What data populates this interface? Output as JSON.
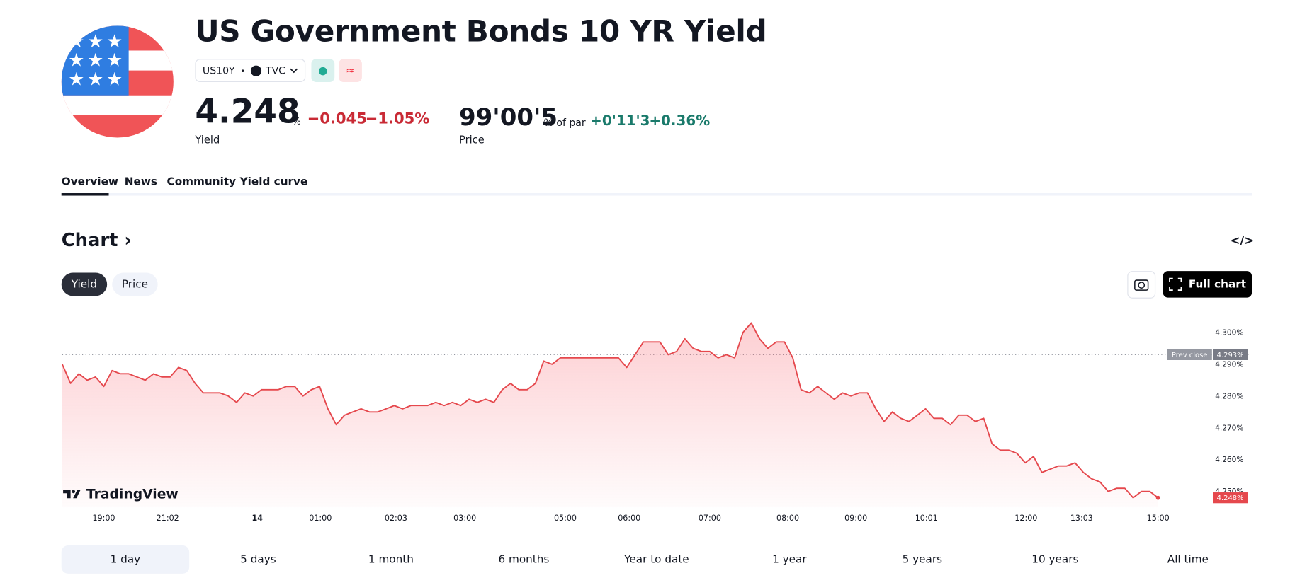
{
  "header": {
    "title": "US Government Bonds 10 YR Yield",
    "symbol": "US10Y",
    "exchange": "TVC",
    "yield_value": "4.248",
    "yield_unit": "%",
    "yield_change": "−0.045",
    "yield_change_pct": "−1.05%",
    "yield_label": "Yield",
    "price_value": "99'00'5",
    "price_unit": "% of par",
    "price_change": "+0'11'3",
    "price_change_pct": "+0.36%",
    "price_label": "Price"
  },
  "tabs": [
    "Overview",
    "News",
    "Community",
    "Yield curve"
  ],
  "chart_section": {
    "title": "Chart",
    "toggles": [
      "Yield",
      "Price"
    ],
    "full_chart": "Full chart",
    "logo": "TradingView"
  },
  "chart_data": {
    "type": "line",
    "color": "#e5484d",
    "values": [
      4.29,
      4.284,
      4.287,
      4.285,
      4.286,
      4.283,
      4.288,
      4.287,
      4.287,
      4.286,
      4.285,
      4.287,
      4.286,
      4.286,
      4.289,
      4.288,
      4.284,
      4.281,
      4.281,
      4.281,
      4.28,
      4.278,
      4.281,
      4.28,
      4.282,
      4.282,
      4.282,
      4.283,
      4.283,
      4.28,
      4.282,
      4.283,
      4.276,
      4.271,
      4.274,
      4.275,
      4.276,
      4.275,
      4.275,
      4.276,
      4.277,
      4.276,
      4.277,
      4.277,
      4.277,
      4.278,
      4.277,
      4.278,
      4.277,
      4.279,
      4.278,
      4.279,
      4.278,
      4.282,
      4.284,
      4.282,
      4.282,
      4.284,
      4.291,
      4.29,
      4.292,
      4.292,
      4.292,
      4.292,
      4.292,
      4.292,
      4.292,
      4.292,
      4.289,
      4.293,
      4.297,
      4.297,
      4.297,
      4.293,
      4.294,
      4.298,
      4.295,
      4.294,
      4.294,
      4.292,
      4.293,
      4.292,
      4.3,
      4.303,
      4.298,
      4.295,
      4.297,
      4.297,
      4.292,
      4.282,
      4.281,
      4.283,
      4.281,
      4.279,
      4.281,
      4.28,
      4.281,
      4.281,
      4.276,
      4.272,
      4.275,
      4.273,
      4.272,
      4.274,
      4.276,
      4.273,
      4.273,
      4.271,
      4.274,
      4.274,
      4.272,
      4.273,
      4.265,
      4.263,
      4.263,
      4.262,
      4.259,
      4.261,
      4.256,
      4.257,
      4.258,
      4.258,
      4.259,
      4.256,
      4.254,
      4.253,
      4.25,
      4.251,
      4.251,
      4.248,
      4.25,
      4.25,
      4.248
    ],
    "xlim": [
      0,
      143
    ],
    "xticks": [
      {
        "value": 5,
        "label": "19:00"
      },
      {
        "value": 12.7,
        "label": "21:02"
      },
      {
        "value": 23.5,
        "label": "14"
      },
      {
        "value": 31.1,
        "label": "01:00"
      },
      {
        "value": 40.2,
        "label": "02:03"
      },
      {
        "value": 48.5,
        "label": "03:00"
      },
      {
        "value": 60.6,
        "label": "05:00"
      },
      {
        "value": 68.3,
        "label": "06:00"
      },
      {
        "value": 78,
        "label": "07:00"
      },
      {
        "value": 87.4,
        "label": "08:00"
      },
      {
        "value": 95.6,
        "label": "09:00"
      },
      {
        "value": 104.1,
        "label": "10:01"
      },
      {
        "value": 116.1,
        "label": "12:00"
      },
      {
        "value": 122.8,
        "label": "13:03"
      },
      {
        "value": 132,
        "label": "15:00"
      }
    ],
    "ylim": [
      4.245,
      4.306
    ],
    "yticks": [
      {
        "value": 4.3,
        "label": "4.300%"
      },
      {
        "value": 4.29,
        "label": "4.290%"
      },
      {
        "value": 4.28,
        "label": "4.280%"
      },
      {
        "value": 4.27,
        "label": "4.270%"
      },
      {
        "value": 4.26,
        "label": "4.260%"
      },
      {
        "value": 4.25,
        "label": "4.250%"
      }
    ],
    "grid": false,
    "prev_close": {
      "name": "Prev close",
      "value": 4.293,
      "label": "4.293%"
    },
    "last": {
      "value": 4.248,
      "label": "4.248%"
    }
  },
  "ranges": [
    "1 day",
    "5 days",
    "1 month",
    "6 months",
    "Year to date",
    "1 year",
    "5 years",
    "10 years",
    "All time"
  ]
}
